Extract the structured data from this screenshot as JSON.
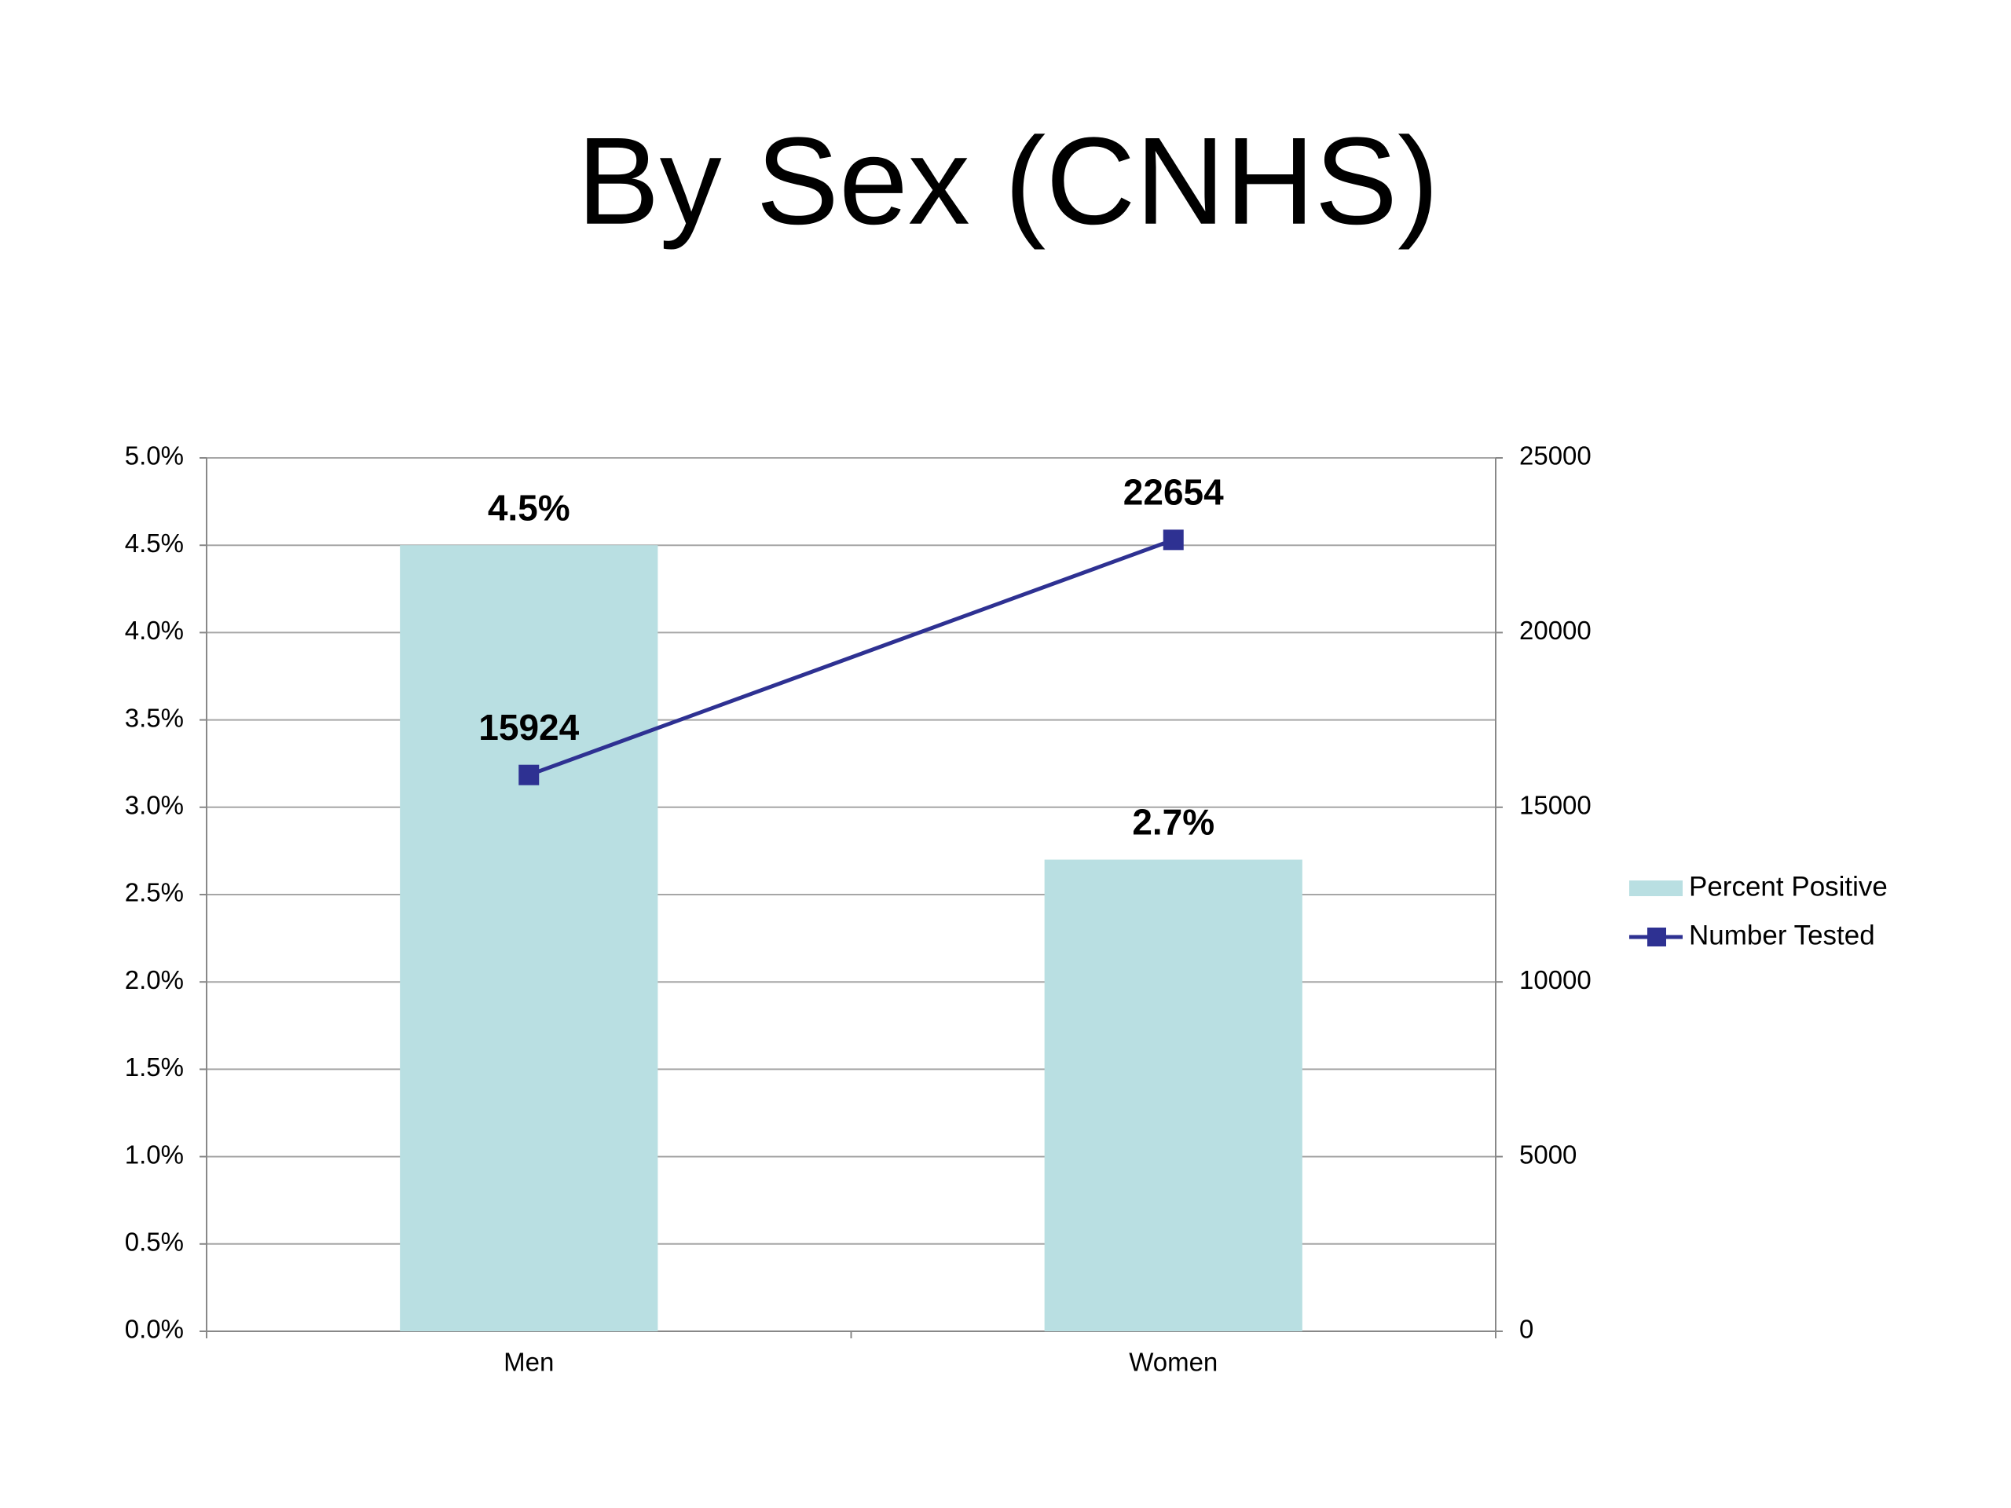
{
  "chart_data": {
    "type": "bar",
    "title": "By Sex (CNHS)",
    "categories": [
      "Men",
      "Women"
    ],
    "series": [
      {
        "name": "Percent Positive",
        "type": "bar",
        "color": "#b9dfe2",
        "values": [
          4.5,
          2.7
        ],
        "value_labels": [
          "4.5%",
          "2.7%"
        ]
      },
      {
        "name": "Number Tested",
        "type": "line",
        "axis": "y2",
        "color": "#2e3192",
        "values": [
          15924,
          22654
        ]
      }
    ],
    "ylim": [
      0,
      5
    ],
    "yticks": [
      {
        "value": 0,
        "label": "0.0%"
      },
      {
        "value": 0.5,
        "label": "0.5%"
      },
      {
        "value": 1,
        "label": "1.0%"
      },
      {
        "value": 1.5,
        "label": "1.5%"
      },
      {
        "value": 2,
        "label": "2.0%"
      },
      {
        "value": 2.5,
        "label": "2.5%"
      },
      {
        "value": 3,
        "label": "3.0%"
      },
      {
        "value": 3.5,
        "label": "3.5%"
      },
      {
        "value": 4,
        "label": "4.0%"
      },
      {
        "value": 4.5,
        "label": "4.5%"
      },
      {
        "value": 5,
        "label": "5.0%"
      }
    ],
    "y2lim": [
      0,
      25000
    ],
    "y2ticks": [
      0,
      5000,
      10000,
      15000,
      20000,
      25000
    ],
    "grid": true,
    "legend": "right"
  }
}
